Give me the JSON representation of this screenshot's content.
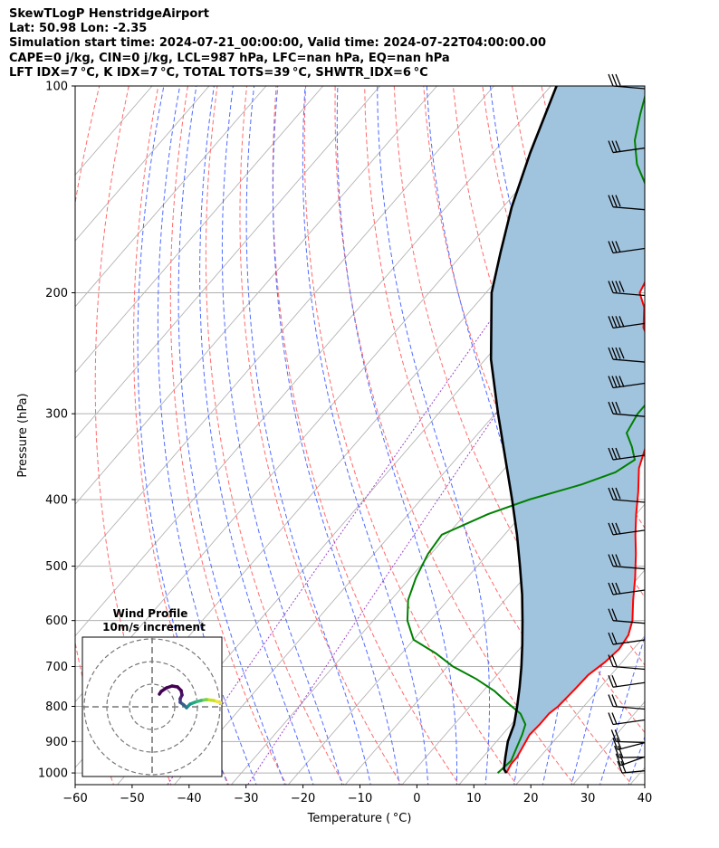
{
  "header": {
    "line1": "SkewTLogP HenstridgeAirport",
    "line2": "Lat: 50.98   Lon: -2.35",
    "line3": "Simulation start time: 2024-07-21_00:00:00, Valid time: 2024-07-22T04:00:00.00",
    "line4": "CAPE=0 j/kg, CIN=0 j/kg, LCL=987 hPa, LFC=nan hPa, EQ=nan hPa",
    "line5": "LFT IDX=7 °C, K IDX=7 °C, TOTAL TOTS=39 °C, SHWTR_IDX=6 °C"
  },
  "colors": {
    "temperature": "#ff0000",
    "dewpoint": "#008000",
    "parcel": "#000000",
    "cape_fill": "#a1c4de",
    "dry_adiabat": "#ff6b6b",
    "moist_adiabat": "#4f6bff",
    "mixing_ratio": "#9b46c9",
    "isotherm": "#b4b4b4"
  },
  "chart_data": {
    "type": "line",
    "subtype": "skew-t log-p",
    "xlabel": "Temperature ( °C)",
    "ylabel": "Pressure (hPa)",
    "xlim": [
      -60,
      40
    ],
    "ylim": [
      1040,
      100
    ],
    "x_ticks": [
      -60,
      -50,
      -40,
      -30,
      -20,
      -10,
      0,
      10,
      20,
      30,
      40
    ],
    "y_ticks": [
      100,
      200,
      300,
      400,
      500,
      600,
      700,
      800,
      900,
      1000
    ],
    "grid": true,
    "series": [
      {
        "name": "Temperature",
        "points": [
          [
            1000,
            16.5
          ],
          [
            970,
            16
          ],
          [
            950,
            16
          ],
          [
            920,
            15.5
          ],
          [
            880,
            14.8
          ],
          [
            850,
            15
          ],
          [
            820,
            15
          ],
          [
            800,
            15.5
          ],
          [
            760,
            15.8
          ],
          [
            720,
            16
          ],
          [
            690,
            17
          ],
          [
            660,
            17.5
          ],
          [
            630,
            17
          ],
          [
            600,
            15.5
          ],
          [
            560,
            12.5
          ],
          [
            520,
            9.5
          ],
          [
            480,
            6
          ],
          [
            450,
            3
          ],
          [
            420,
            0
          ],
          [
            390,
            -3
          ],
          [
            360,
            -6.5
          ],
          [
            330,
            -9
          ],
          [
            310,
            -11
          ],
          [
            290,
            -14
          ],
          [
            270,
            -17
          ],
          [
            250,
            -20
          ],
          [
            235,
            -24
          ],
          [
            225,
            -27
          ],
          [
            210,
            -30
          ],
          [
            200,
            -33
          ],
          [
            180,
            -35
          ],
          [
            165,
            -37
          ],
          [
            150,
            -38.5
          ],
          [
            140,
            -40
          ],
          [
            130,
            -41
          ],
          [
            120,
            -42
          ],
          [
            110,
            -43
          ],
          [
            100,
            -44
          ]
        ]
      },
      {
        "name": "Dewpoint",
        "points": [
          [
            1000,
            15
          ],
          [
            960,
            15.5
          ],
          [
            920,
            14.5
          ],
          [
            880,
            13.5
          ],
          [
            850,
            12.5
          ],
          [
            820,
            10
          ],
          [
            790,
            6
          ],
          [
            760,
            2
          ],
          [
            730,
            -3
          ],
          [
            700,
            -9
          ],
          [
            670,
            -14
          ],
          [
            640,
            -20
          ],
          [
            600,
            -24
          ],
          [
            560,
            -27
          ],
          [
            520,
            -29
          ],
          [
            480,
            -30.5
          ],
          [
            450,
            -31
          ],
          [
            420,
            -26
          ],
          [
            400,
            -21
          ],
          [
            380,
            -14
          ],
          [
            365,
            -10
          ],
          [
            350,
            -8.5
          ],
          [
            335,
            -11
          ],
          [
            320,
            -14
          ],
          [
            300,
            -15
          ],
          [
            285,
            -15
          ],
          [
            270,
            -16
          ],
          [
            250,
            -19
          ],
          [
            230,
            -22
          ],
          [
            215,
            -25
          ],
          [
            200,
            -28
          ],
          [
            185,
            -30
          ],
          [
            170,
            -33
          ],
          [
            160,
            -37
          ],
          [
            150,
            -42
          ],
          [
            140,
            -48
          ],
          [
            130,
            -53
          ],
          [
            120,
            -57
          ],
          [
            110,
            -60
          ],
          [
            100,
            -63
          ]
        ]
      },
      {
        "name": "Parcel",
        "points": [
          [
            1000,
            16.5
          ],
          [
            987,
            15.5
          ],
          [
            950,
            14
          ],
          [
            900,
            12
          ],
          [
            850,
            10.5
          ],
          [
            800,
            8.3
          ],
          [
            750,
            5.8
          ],
          [
            700,
            3
          ],
          [
            650,
            -0.2
          ],
          [
            600,
            -3.8
          ],
          [
            550,
            -7.8
          ],
          [
            500,
            -12.5
          ],
          [
            450,
            -17.8
          ],
          [
            400,
            -24
          ],
          [
            350,
            -31.2
          ],
          [
            300,
            -39.5
          ],
          [
            250,
            -49
          ],
          [
            200,
            -59
          ],
          [
            175,
            -63.5
          ],
          [
            150,
            -68.5
          ],
          [
            125,
            -73.5
          ],
          [
            100,
            -79
          ]
        ]
      }
    ],
    "cape_area": "shaded region between parcel and temperature profiles",
    "wind_barbs": {
      "side": "right",
      "levels_hPa": [
        1000,
        975,
        950,
        925,
        900,
        850,
        800,
        750,
        700,
        650,
        600,
        550,
        500,
        450,
        400,
        350,
        300,
        275,
        250,
        225,
        200,
        175,
        150,
        125,
        100
      ]
    },
    "inset": {
      "title": "Wind Profile",
      "subtitle": "10m/s increment",
      "type": "hodograph",
      "rings": 3
    }
  }
}
